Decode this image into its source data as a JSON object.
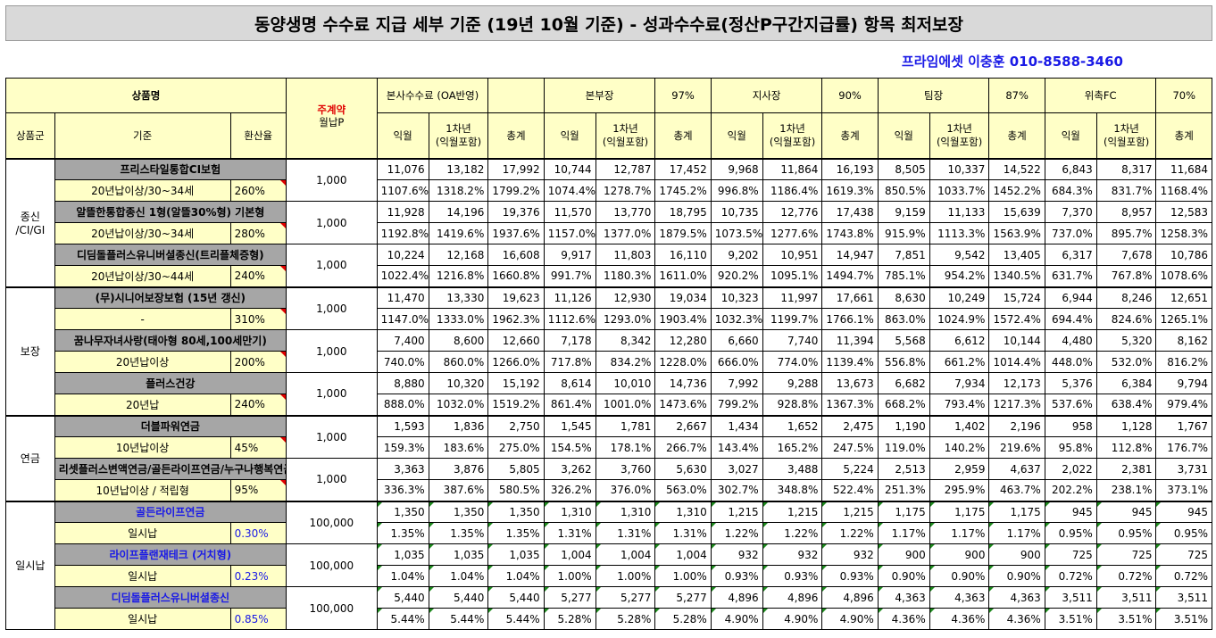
{
  "title": "동양생명 수수료 지급 세부 기준 (19년 10월 기준) - 성과수수료(정산P구간지급률) 항목 최저보장",
  "contact": "프라임에셋 이충훈 010-8588-3460",
  "header": {
    "product_name": "상품명",
    "group": "상품군",
    "criteria": "기준",
    "conversion": "환산율",
    "main_contract": "주계약",
    "monthly_premium": "월납P",
    "blocks": [
      {
        "name": "본사수수료 (OA반영)",
        "pct": ""
      },
      {
        "name": "본부장",
        "pct": "97%"
      },
      {
        "name": "지사장",
        "pct": "90%"
      },
      {
        "name": "팀장",
        "pct": "87%"
      },
      {
        "name": "위촉FC",
        "pct": "70%"
      }
    ],
    "sub": [
      "익월",
      "1차년\n(익월포함)",
      "총계"
    ]
  },
  "groups": [
    {
      "name": "종신\n/CI/GI",
      "products": [
        {
          "name": "프리스타일통합CI보험",
          "criteria": "20년납이상/30~34세",
          "rate": "260%",
          "premium": "1,000",
          "amounts": [
            "11,076",
            "13,182",
            "17,992",
            "10,744",
            "12,787",
            "17,452",
            "9,968",
            "11,864",
            "16,193",
            "8,505",
            "10,337",
            "14,522",
            "6,843",
            "8,317",
            "11,684"
          ],
          "pcts": [
            "1107.6%",
            "1318.2%",
            "1799.2%",
            "1074.4%",
            "1278.7%",
            "1745.2%",
            "996.8%",
            "1186.4%",
            "1619.3%",
            "850.5%",
            "1033.7%",
            "1452.2%",
            "684.3%",
            "831.7%",
            "1168.4%"
          ]
        },
        {
          "name": "알뜰한통합종신 1형(알뜰30%형) 기본형",
          "criteria": "20년납이상/30~34세",
          "rate": "280%",
          "premium": "1,000",
          "amounts": [
            "11,928",
            "14,196",
            "19,376",
            "11,570",
            "13,770",
            "18,795",
            "10,735",
            "12,776",
            "17,438",
            "9,159",
            "11,133",
            "15,639",
            "7,370",
            "8,957",
            "12,583"
          ],
          "pcts": [
            "1192.8%",
            "1419.6%",
            "1937.6%",
            "1157.0%",
            "1377.0%",
            "1879.5%",
            "1073.5%",
            "1277.6%",
            "1743.8%",
            "915.9%",
            "1113.3%",
            "1563.9%",
            "737.0%",
            "895.7%",
            "1258.3%"
          ]
        },
        {
          "name": "디딤돌플러스유니버셜종신(트리플체증형)",
          "criteria": "20년납이상/30~44세",
          "rate": "240%",
          "premium": "1,000",
          "amounts": [
            "10,224",
            "12,168",
            "16,608",
            "9,917",
            "11,803",
            "16,110",
            "9,202",
            "10,951",
            "14,947",
            "7,851",
            "9,542",
            "13,405",
            "6,317",
            "7,678",
            "10,786"
          ],
          "pcts": [
            "1022.4%",
            "1216.8%",
            "1660.8%",
            "991.7%",
            "1180.3%",
            "1611.0%",
            "920.2%",
            "1095.1%",
            "1494.7%",
            "785.1%",
            "954.2%",
            "1340.5%",
            "631.7%",
            "767.8%",
            "1078.6%"
          ]
        }
      ]
    },
    {
      "name": "보장",
      "products": [
        {
          "name": "(무)시니어보장보험 (15년 갱신)",
          "criteria": "-",
          "rate": "310%",
          "premium": "1,000",
          "amounts": [
            "11,470",
            "13,330",
            "19,623",
            "11,126",
            "12,930",
            "19,034",
            "10,323",
            "11,997",
            "17,661",
            "8,630",
            "10,249",
            "15,724",
            "6,944",
            "8,246",
            "12,651"
          ],
          "pcts": [
            "1147.0%",
            "1333.0%",
            "1962.3%",
            "1112.6%",
            "1293.0%",
            "1903.4%",
            "1032.3%",
            "1199.7%",
            "1766.1%",
            "863.0%",
            "1024.9%",
            "1572.4%",
            "694.4%",
            "824.6%",
            "1265.1%"
          ]
        },
        {
          "name": "꿈나무자녀사랑(태아형 80세,100세만기)",
          "criteria": "20년납이상",
          "rate": "200%",
          "premium": "1,000",
          "amounts": [
            "7,400",
            "8,600",
            "12,660",
            "7,178",
            "8,342",
            "12,280",
            "6,660",
            "7,740",
            "11,394",
            "5,568",
            "6,612",
            "10,144",
            "4,480",
            "5,320",
            "8,162"
          ],
          "pcts": [
            "740.0%",
            "860.0%",
            "1266.0%",
            "717.8%",
            "834.2%",
            "1228.0%",
            "666.0%",
            "774.0%",
            "1139.4%",
            "556.8%",
            "661.2%",
            "1014.4%",
            "448.0%",
            "532.0%",
            "816.2%"
          ]
        },
        {
          "name": "플러스건강",
          "criteria": "20년납",
          "rate": "240%",
          "premium": "1,000",
          "amounts": [
            "8,880",
            "10,320",
            "15,192",
            "8,614",
            "10,010",
            "14,736",
            "7,992",
            "9,288",
            "13,673",
            "6,682",
            "7,934",
            "12,173",
            "5,376",
            "6,384",
            "9,794"
          ],
          "pcts": [
            "888.0%",
            "1032.0%",
            "1519.2%",
            "861.4%",
            "1001.0%",
            "1473.6%",
            "799.2%",
            "928.8%",
            "1367.3%",
            "668.2%",
            "793.4%",
            "1217.3%",
            "537.6%",
            "638.4%",
            "979.4%"
          ]
        }
      ]
    },
    {
      "name": "연금",
      "products": [
        {
          "name": "더블파워연금",
          "criteria": "10년납이상",
          "rate": "45%",
          "premium": "1,000",
          "amounts": [
            "1,593",
            "1,836",
            "2,750",
            "1,545",
            "1,781",
            "2,667",
            "1,434",
            "1,652",
            "2,475",
            "1,190",
            "1,402",
            "2,196",
            "958",
            "1,128",
            "1,767"
          ],
          "pcts": [
            "159.3%",
            "183.6%",
            "275.0%",
            "154.5%",
            "178.1%",
            "266.7%",
            "143.4%",
            "165.2%",
            "247.5%",
            "119.0%",
            "140.2%",
            "219.6%",
            "95.8%",
            "112.8%",
            "176.7%"
          ]
        },
        {
          "name": "리셋플러스변액연금/골든라이프연금/누구나행복연금",
          "criteria": "10년납이상 / 적립형",
          "rate": "95%",
          "premium": "1,000",
          "amounts": [
            "3,363",
            "3,876",
            "5,805",
            "3,262",
            "3,760",
            "5,630",
            "3,027",
            "3,488",
            "5,224",
            "2,513",
            "2,959",
            "4,637",
            "2,022",
            "2,381",
            "3,731"
          ],
          "pcts": [
            "336.3%",
            "387.6%",
            "580.5%",
            "326.2%",
            "376.0%",
            "563.0%",
            "302.7%",
            "348.8%",
            "522.4%",
            "251.3%",
            "295.9%",
            "463.7%",
            "202.2%",
            "238.1%",
            "373.1%"
          ]
        }
      ]
    },
    {
      "name": "일시납",
      "products": [
        {
          "name": "골든라이프연금",
          "criteria": "일시납",
          "rate": "0.30%",
          "premium": "100,000",
          "blue": true,
          "amounts": [
            "1,350",
            "1,350",
            "1,350",
            "1,310",
            "1,310",
            "1,310",
            "1,215",
            "1,215",
            "1,215",
            "1,175",
            "1,175",
            "1,175",
            "945",
            "945",
            "945"
          ],
          "pcts": [
            "1.35%",
            "1.35%",
            "1.35%",
            "1.31%",
            "1.31%",
            "1.31%",
            "1.22%",
            "1.22%",
            "1.22%",
            "1.17%",
            "1.17%",
            "1.17%",
            "0.95%",
            "0.95%",
            "0.95%"
          ]
        },
        {
          "name": "라이프플랜재테크 (거치형)",
          "criteria": "일시납",
          "rate": "0.23%",
          "premium": "100,000",
          "blue": true,
          "amounts": [
            "1,035",
            "1,035",
            "1,035",
            "1,004",
            "1,004",
            "1,004",
            "932",
            "932",
            "932",
            "900",
            "900",
            "900",
            "725",
            "725",
            "725"
          ],
          "pcts": [
            "1.04%",
            "1.04%",
            "1.04%",
            "1.00%",
            "1.00%",
            "1.00%",
            "0.93%",
            "0.93%",
            "0.93%",
            "0.90%",
            "0.90%",
            "0.90%",
            "0.72%",
            "0.72%",
            "0.72%"
          ]
        },
        {
          "name": "디딤돌플러스유니버셜종신",
          "criteria": "일시납",
          "rate": "0.85%",
          "premium": "100,000",
          "blue": true,
          "amounts": [
            "5,440",
            "5,440",
            "5,440",
            "5,277",
            "5,277",
            "5,277",
            "4,896",
            "4,896",
            "4,896",
            "4,363",
            "4,363",
            "4,363",
            "3,511",
            "3,511",
            "3,511"
          ],
          "pcts": [
            "5.44%",
            "5.44%",
            "5.44%",
            "5.28%",
            "5.28%",
            "5.28%",
            "4.90%",
            "4.90%",
            "4.90%",
            "4.36%",
            "4.36%",
            "4.36%",
            "3.51%",
            "3.51%",
            "3.51%"
          ]
        }
      ]
    }
  ]
}
